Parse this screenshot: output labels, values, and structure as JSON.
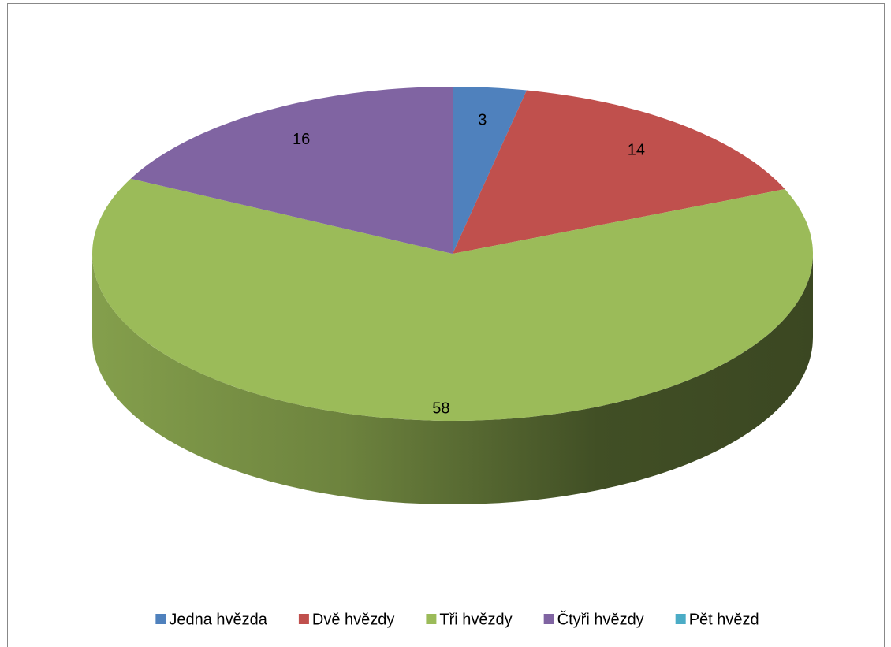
{
  "chart_data": {
    "type": "pie3d",
    "categories": [
      "Jedna hvězda",
      "Dvě hvězdy",
      "Tři hvězdy",
      "Čtyři hvězdy",
      "Pět hvězd"
    ],
    "values": [
      3,
      14,
      58,
      16,
      0
    ],
    "colors": [
      "#4f81bd",
      "#c0504d",
      "#9bbb59",
      "#8064a2",
      "#4bacc6"
    ],
    "legend": "bottom"
  }
}
